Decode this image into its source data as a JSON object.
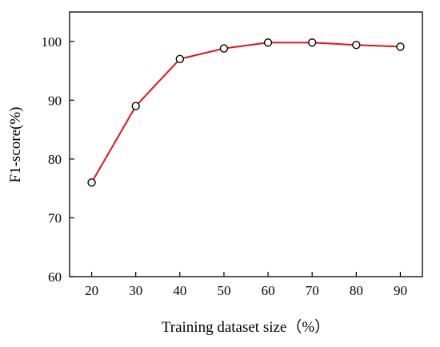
{
  "chart_data": {
    "type": "line",
    "title": "",
    "xlabel": "Training dataset size（%）",
    "ylabel": "F1-score(%)",
    "x": [
      20,
      30,
      40,
      50,
      60,
      70,
      80,
      90
    ],
    "series": [
      {
        "values": [
          76,
          89,
          97,
          98.8,
          99.8,
          99.8,
          99.4,
          99.1
        ],
        "color": "#e8101a",
        "marker": "open-circle"
      }
    ],
    "xlim": [
      15,
      95
    ],
    "ylim": [
      60,
      105
    ],
    "xticks": [
      20,
      30,
      40,
      50,
      60,
      70,
      80,
      90
    ],
    "yticks": [
      60,
      70,
      80,
      90,
      100
    ],
    "grid": false,
    "legend": "none"
  }
}
